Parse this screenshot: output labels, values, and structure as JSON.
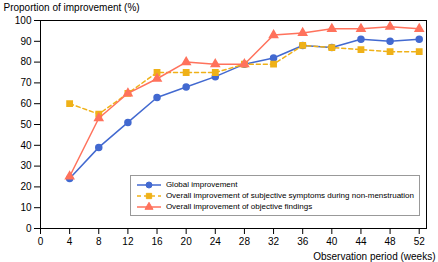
{
  "chart_data": {
    "type": "line",
    "x": [
      4,
      8,
      12,
      16,
      20,
      24,
      28,
      32,
      36,
      40,
      44,
      48,
      52
    ],
    "series": [
      {
        "name": "Global improvement",
        "values": [
          24,
          39,
          51,
          63,
          68,
          73,
          79,
          82,
          88,
          87,
          91,
          90,
          91
        ],
        "marker": "circle",
        "line_style": "solid"
      },
      {
        "name": "Overall improvement of subjective symptoms during non-menstruation",
        "values": [
          60,
          55,
          65,
          75,
          75,
          75,
          79,
          79,
          88,
          87,
          86,
          85,
          85
        ],
        "marker": "square",
        "line_style": "dashed"
      },
      {
        "name": "Overall improvement of objective findings",
        "values": [
          25,
          53,
          65,
          72,
          80,
          79,
          79,
          93,
          94,
          96,
          96,
          97,
          96
        ],
        "marker": "triangle",
        "line_style": "solid"
      }
    ],
    "xlabel": "Observation period (weeks)",
    "ylabel": "Proportion of improvement (%)",
    "xlim": [
      0,
      53
    ],
    "ylim": [
      0,
      100
    ],
    "xticks": [
      0,
      4,
      8,
      12,
      16,
      20,
      24,
      28,
      32,
      36,
      40,
      44,
      48,
      52
    ],
    "yticks": [
      0,
      10,
      20,
      30,
      40,
      50,
      60,
      70,
      80,
      90,
      100
    ],
    "grid": false,
    "legend": "lower right"
  }
}
